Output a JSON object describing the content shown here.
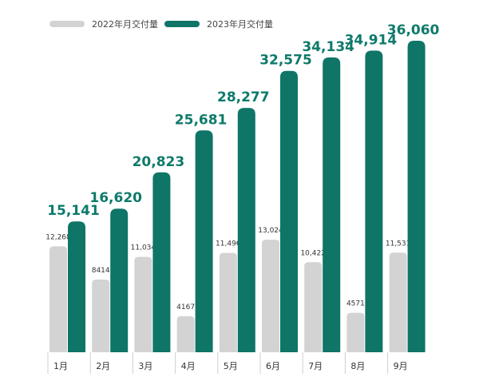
{
  "chart_data": {
    "type": "bar",
    "categories": [
      "1月",
      "2月",
      "3月",
      "4月",
      "5月",
      "6月",
      "7月",
      "8月",
      "9月"
    ],
    "series": [
      {
        "name": "2022年月交付量",
        "values": [
          12268,
          8414,
          11034,
          4167,
          11496,
          13024,
          10422,
          4571,
          11531
        ],
        "labels": [
          "12,268",
          "8414",
          "11,034",
          "4167",
          "11,496",
          "13,024",
          "10,422",
          "4571",
          "11,531"
        ],
        "color": "#d3d3d3"
      },
      {
        "name": "2023年月交付量",
        "values": [
          15141,
          16620,
          20823,
          25681,
          28277,
          32575,
          34134,
          34914,
          36060
        ],
        "labels": [
          "15,141",
          "16,620",
          "20,823",
          "25,681",
          "28,277",
          "32,575",
          "34,134",
          "34,914",
          "36,060"
        ],
        "color": "#0e7567"
      }
    ],
    "label_color_2023": "#0e7a6a",
    "ylim": [
      0,
      36060
    ],
    "grid": false,
    "legend": "top-left"
  }
}
